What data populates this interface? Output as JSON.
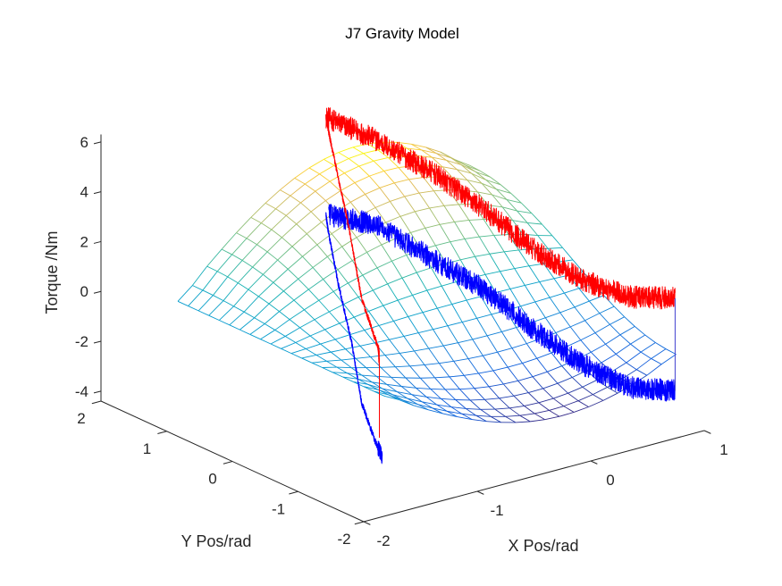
{
  "chart_data": {
    "type": "surface",
    "title": "J7 Gravity Model",
    "xlabel": "X Pos/rad",
    "ylabel": "Y Pos/rad",
    "zlabel": "Torque /Nm",
    "xlim": [
      -2,
      1
    ],
    "ylim": [
      -2,
      2
    ],
    "zlim": [
      -4.4,
      6.3
    ],
    "x_ticks": [
      -2,
      -1,
      0,
      1
    ],
    "y_ticks": [
      -2,
      -1,
      0,
      1,
      2
    ],
    "z_ticks": [
      -4,
      -2,
      0,
      2,
      4,
      6
    ],
    "x_tick_labels": [
      "-2",
      "-1",
      "0",
      "1"
    ],
    "y_tick_labels": [
      "-2",
      "-1",
      "0",
      "1",
      "2"
    ],
    "z_tick_labels": [
      "-4",
      "-2",
      "0",
      "2",
      "4",
      "6"
    ],
    "grid": false,
    "colormap": "parula",
    "surface": {
      "style": "mesh",
      "x": [
        -1.571,
        -1.314,
        -1.056,
        -0.799,
        -0.542,
        -0.285,
        -0.028,
        0.229,
        0.486,
        0.743,
        1.0
      ],
      "y": [
        -1.571,
        -1.257,
        -0.942,
        -0.628,
        -0.314,
        0,
        0.314,
        0.628,
        0.942,
        1.257,
        1.571
      ],
      "z": [
        [
          -0.4,
          -1.09,
          -1.73,
          -2.28,
          -2.71,
          -2.99,
          -3.1,
          -3.03,
          -2.79,
          -2.39,
          -1.86
        ],
        [
          -0.4,
          -1.04,
          -1.64,
          -2.16,
          -2.57,
          -2.83,
          -2.93,
          -2.86,
          -2.64,
          -2.26,
          -1.77
        ],
        [
          -0.4,
          -0.92,
          -1.4,
          -1.82,
          -2.14,
          -2.35,
          -2.43,
          -2.38,
          -2.2,
          -1.9,
          -1.5
        ],
        [
          -0.4,
          -0.72,
          -1.02,
          -1.28,
          -1.48,
          -1.61,
          -1.66,
          -1.63,
          -1.51,
          -1.33,
          -1.08
        ],
        [
          -0.4,
          -0.47,
          -0.54,
          -0.6,
          -0.64,
          -0.67,
          -0.68,
          -0.68,
          -0.65,
          -0.61,
          -0.55
        ],
        [
          -0.4,
          -0.2,
          -0.01,
          0.16,
          0.29,
          0.37,
          0.4,
          0.38,
          0.31,
          0.19,
          0.03
        ],
        [
          -0.4,
          0.08,
          0.53,
          0.91,
          1.21,
          1.41,
          1.48,
          1.43,
          1.26,
          0.99,
          0.62
        ],
        [
          -0.4,
          0.33,
          1.01,
          1.59,
          2.05,
          2.34,
          2.46,
          2.38,
          2.13,
          1.7,
          1.14
        ],
        [
          -0.4,
          0.52,
          1.39,
          2.13,
          2.71,
          3.09,
          3.23,
          3.14,
          2.81,
          2.27,
          1.56
        ],
        [
          -0.4,
          0.65,
          1.63,
          2.48,
          3.14,
          3.56,
          3.73,
          3.62,
          3.25,
          2.64,
          1.83
        ],
        [
          -0.4,
          0.69,
          1.72,
          2.6,
          3.29,
          3.73,
          3.9,
          3.79,
          3.4,
          2.77,
          1.92
        ]
      ]
    },
    "series": [
      {
        "color": "#ff0000",
        "noisy": true,
        "points": [
          [
            -0.25,
            1.6,
            5.35
          ],
          [
            -0.076,
            1.155,
            4.79
          ],
          [
            0.133,
            0.621,
            3.81
          ],
          [
            0.31,
            0.166,
            2.71
          ],
          [
            0.484,
            -0.278,
            1.47
          ],
          [
            0.661,
            -0.733,
            0.51
          ],
          [
            0.835,
            -1.178,
            0.16
          ],
          [
            0.99,
            -1.574,
            0.41
          ]
        ]
      },
      {
        "color": "#0000ff",
        "noisy": true,
        "points": [
          [
            -0.24,
            1.574,
            1.43
          ],
          [
            -0.076,
            1.155,
            1.38
          ],
          [
            0.133,
            0.621,
            0.34
          ],
          [
            0.31,
            0.166,
            -0.51
          ],
          [
            0.484,
            -0.278,
            -1.76
          ],
          [
            0.661,
            -0.733,
            -2.86
          ],
          [
            0.835,
            -1.178,
            -3.47
          ],
          [
            0.99,
            -1.574,
            -3.31
          ]
        ]
      },
      {
        "color": "#ff0000",
        "noisy": true,
        "points": [
          [
            -0.25,
            1.6,
            5.35
          ],
          [
            -0.318,
            1.402,
            4.57
          ],
          [
            -0.532,
            0.773,
            2.4
          ],
          [
            -0.702,
            0.276,
            0.23
          ],
          [
            -0.905,
            -0.321,
            -0.73
          ],
          [
            -0.925,
            -0.38,
            -1.1
          ]
        ]
      },
      {
        "color": "#0000ff",
        "noisy": true,
        "points": [
          [
            -0.25,
            1.6,
            1.43
          ],
          [
            -0.284,
            1.501,
            0.86
          ],
          [
            -0.408,
            1.138,
            -0.6
          ],
          [
            -0.577,
            0.641,
            -2.16
          ],
          [
            -0.702,
            0.276,
            -3.96
          ],
          [
            -0.871,
            -0.222,
            -4.7
          ],
          [
            -0.963,
            -0.49,
            -4.9
          ]
        ]
      },
      {
        "color": "#ff0000",
        "noisy": false,
        "points": [
          [
            -0.925,
            -0.38,
            -1.1
          ],
          [
            -0.925,
            -0.38,
            -4.3
          ]
        ]
      },
      {
        "color": "#4040d0",
        "noisy": false,
        "points": [
          [
            0.99,
            -1.574,
            0.41
          ],
          [
            0.99,
            -1.574,
            -3.31
          ]
        ]
      }
    ]
  }
}
